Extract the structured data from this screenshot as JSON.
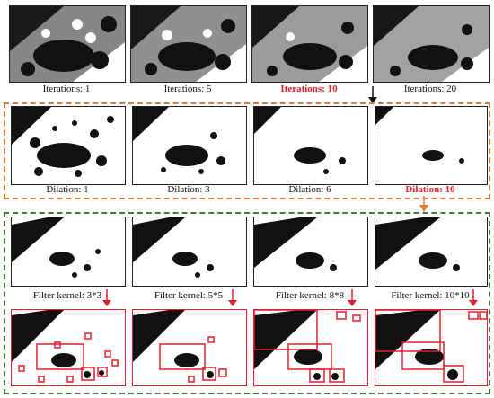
{
  "rows": {
    "iterations": [
      {
        "label": "Iterations: 1",
        "highlight": false
      },
      {
        "label": "Iterations: 5",
        "highlight": false
      },
      {
        "label": "Iterations: 10",
        "highlight": true
      },
      {
        "label": "Iterations: 20",
        "highlight": false
      }
    ],
    "dilation": [
      {
        "label": "Dilation: 1",
        "highlight": false
      },
      {
        "label": "Dilation: 3",
        "highlight": false
      },
      {
        "label": "Dilation: 6",
        "highlight": false
      },
      {
        "label": "Dilation: 10",
        "highlight": true
      }
    ],
    "filter": [
      {
        "label": "Filter kernel: 3*3"
      },
      {
        "label": "Filter kernel: 5*5"
      },
      {
        "label": "Filter kernel: 8*8"
      },
      {
        "label": "Filter kernel: 10*10"
      }
    ]
  },
  "colors": {
    "orange_dash": "#e07b39",
    "green_dash": "#3e7d3a",
    "highlight_red": "#e0202a",
    "arrow": "#111111"
  }
}
